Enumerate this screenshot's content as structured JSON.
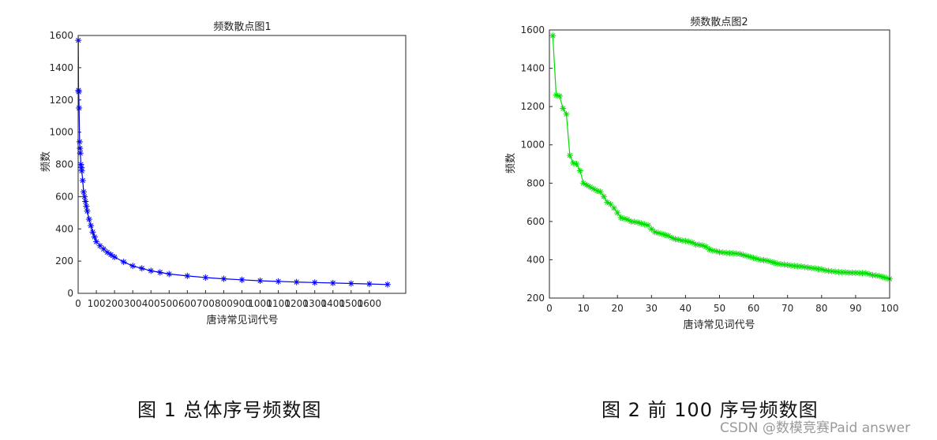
{
  "chart_data": [
    {
      "type": "line",
      "title": "频数散点图1",
      "xlabel": "唐诗常见词代号",
      "ylabel": "频数",
      "xlim": [
        0,
        1800
      ],
      "ylim": [
        0,
        1600
      ],
      "xticks": [
        0,
        100,
        200,
        300,
        400,
        500,
        600,
        700,
        800,
        900,
        1000,
        1100,
        1200,
        1300,
        1400,
        1500,
        1600
      ],
      "yticks": [
        0,
        200,
        400,
        600,
        800,
        1000,
        1200,
        1400,
        1600
      ],
      "xtick_labels": [
        "0",
        "100",
        "200",
        "300",
        "400",
        "500",
        "600",
        "700",
        "800",
        "900",
        "1000",
        "1100",
        "1200",
        "1300",
        "1400",
        "1500",
        "1600"
      ],
      "ytick_labels": [
        "0",
        "200",
        "400",
        "600",
        "800",
        "1000",
        "1200",
        "1400",
        "1600"
      ],
      "marker": "*",
      "color": "#0000ff",
      "grid": false,
      "x": [
        1,
        2,
        3,
        5,
        8,
        10,
        12,
        15,
        18,
        20,
        25,
        30,
        35,
        40,
        45,
        50,
        60,
        70,
        80,
        90,
        100,
        120,
        140,
        160,
        180,
        200,
        250,
        300,
        350,
        400,
        450,
        500,
        600,
        700,
        800,
        900,
        1000,
        1100,
        1200,
        1300,
        1400,
        1500,
        1600,
        1700
      ],
      "y": [
        1570,
        1260,
        1250,
        1150,
        940,
        900,
        870,
        800,
        780,
        760,
        700,
        630,
        600,
        570,
        540,
        510,
        460,
        420,
        380,
        350,
        320,
        295,
        275,
        255,
        240,
        225,
        195,
        170,
        155,
        140,
        130,
        120,
        108,
        98,
        90,
        84,
        78,
        74,
        70,
        67,
        64,
        61,
        58,
        55
      ]
    },
    {
      "type": "line",
      "title": "频数散点图2",
      "xlabel": "唐诗常见词代号",
      "ylabel": "频数",
      "xlim": [
        0,
        100
      ],
      "ylim": [
        200,
        1600
      ],
      "xticks": [
        0,
        10,
        20,
        30,
        40,
        50,
        60,
        70,
        80,
        90,
        100
      ],
      "yticks": [
        200,
        400,
        600,
        800,
        1000,
        1200,
        1400,
        1600
      ],
      "xtick_labels": [
        "0",
        "10",
        "20",
        "30",
        "40",
        "50",
        "60",
        "70",
        "80",
        "90",
        "100"
      ],
      "ytick_labels": [
        "200",
        "400",
        "600",
        "800",
        "1000",
        "1200",
        "1400",
        "1600"
      ],
      "marker": "*",
      "color": "#00dd00",
      "grid": false,
      "x": [
        1,
        2,
        3,
        4,
        5,
        6,
        7,
        8,
        9,
        10,
        11,
        12,
        13,
        14,
        15,
        16,
        17,
        18,
        19,
        20,
        21,
        22,
        23,
        24,
        25,
        26,
        27,
        28,
        29,
        30,
        31,
        32,
        33,
        34,
        35,
        36,
        37,
        38,
        39,
        40,
        41,
        42,
        43,
        44,
        45,
        46,
        47,
        48,
        49,
        50,
        51,
        52,
        53,
        54,
        55,
        56,
        57,
        58,
        59,
        60,
        61,
        62,
        63,
        64,
        65,
        66,
        67,
        68,
        69,
        70,
        71,
        72,
        73,
        74,
        75,
        76,
        77,
        78,
        79,
        80,
        81,
        82,
        83,
        84,
        85,
        86,
        87,
        88,
        89,
        90,
        91,
        92,
        93,
        94,
        95,
        96,
        97,
        98,
        99,
        100
      ],
      "y": [
        1570,
        1260,
        1255,
        1190,
        1160,
        945,
        905,
        900,
        865,
        800,
        790,
        780,
        770,
        760,
        755,
        730,
        700,
        690,
        670,
        645,
        620,
        615,
        610,
        600,
        598,
        595,
        590,
        585,
        580,
        560,
        545,
        540,
        535,
        530,
        525,
        515,
        508,
        505,
        500,
        498,
        495,
        490,
        480,
        478,
        475,
        468,
        455,
        448,
        445,
        440,
        438,
        436,
        435,
        434,
        432,
        430,
        425,
        420,
        415,
        410,
        405,
        400,
        398,
        395,
        390,
        385,
        380,
        377,
        375,
        373,
        370,
        368,
        366,
        365,
        362,
        360,
        357,
        355,
        352,
        350,
        345,
        342,
        340,
        338,
        336,
        335,
        334,
        333,
        332,
        332,
        331,
        330,
        330,
        325,
        320,
        318,
        315,
        310,
        305,
        300
      ]
    }
  ],
  "captions": [
    "图 1  总体序号频数图",
    "图 2  前 100 序号频数图"
  ],
  "watermark": "CSDN @数模竞赛Paid answer"
}
